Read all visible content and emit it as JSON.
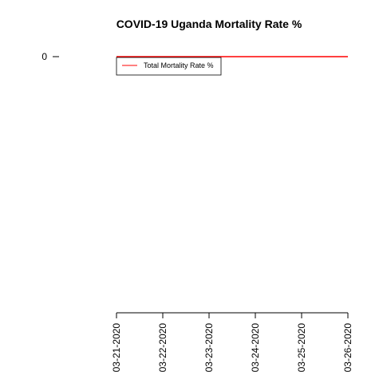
{
  "chart_data": {
    "type": "line",
    "title": "COVID-19 Uganda Mortality Rate %",
    "xlabel": "",
    "ylabel": "",
    "x": [
      "03-21-2020",
      "03-22-2020",
      "03-23-2020",
      "03-24-2020",
      "03-25-2020",
      "03-26-2020"
    ],
    "series": [
      {
        "name": "Total Mortality Rate %",
        "values": [
          0,
          0,
          0,
          0,
          0,
          0
        ],
        "color": "#ff0000"
      }
    ],
    "y_ticks": [
      "0"
    ],
    "grid": false,
    "legend_position": "top-left"
  }
}
